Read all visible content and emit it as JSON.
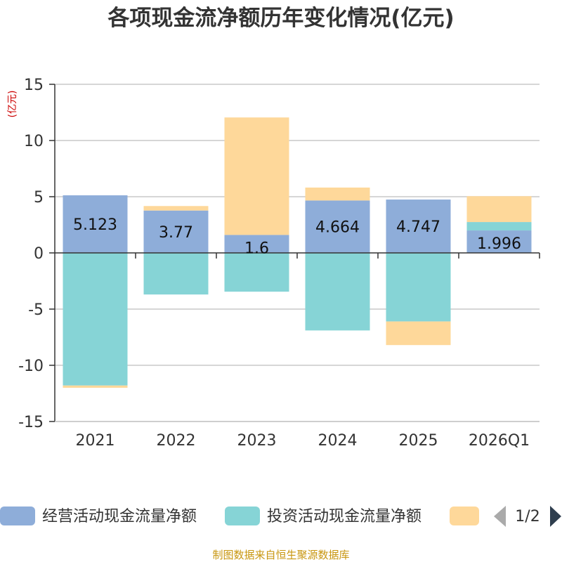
{
  "chart_data": {
    "type": "bar",
    "stacked": true,
    "title": "各项现金流净额历年变化情况(亿元)",
    "unit_label": "(亿元)",
    "categories": [
      "2021",
      "2022",
      "2023",
      "2024",
      "2025",
      "2026Q1"
    ],
    "ylim": [
      -15,
      15
    ],
    "yticks": [
      15,
      10,
      5,
      0,
      -5,
      -10,
      -15
    ],
    "grid": true,
    "series": [
      {
        "name": "经营活动现金流量净额",
        "color": "#8eadd9",
        "values": [
          5.123,
          3.77,
          1.6,
          4.664,
          4.747,
          1.996
        ],
        "data_labels": [
          "5.123",
          "3.77",
          "1.6",
          "4.664",
          "4.747",
          "1.996"
        ]
      },
      {
        "name": "投资活动现金流量净额",
        "color": "#86d4d6",
        "values": [
          -11.8,
          -3.7,
          -3.45,
          -6.9,
          -6.1,
          0.75
        ]
      },
      {
        "name": "",
        "color": "#fed89a",
        "values": [
          -0.2,
          0.4,
          10.45,
          1.15,
          -2.1,
          2.3
        ]
      }
    ],
    "legend": {
      "position": "bottom",
      "page": "1/2"
    }
  },
  "source": "制图数据来自恒生聚源数据库",
  "icons": {
    "pager_prev": "triangle-left-icon",
    "pager_next": "triangle-right-icon"
  }
}
